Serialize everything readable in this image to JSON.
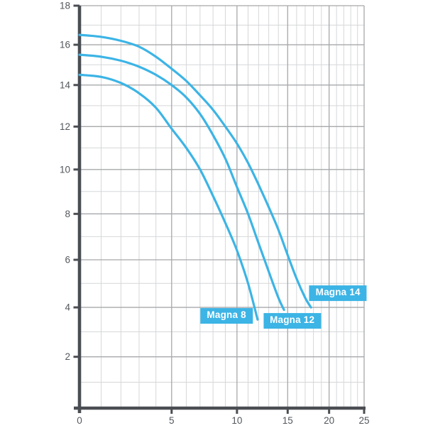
{
  "chart_data": {
    "type": "line",
    "title": "",
    "subtitle": "",
    "legend_position": "inline-labels",
    "grid": "on",
    "x_axis": {
      "label": "",
      "min": 0,
      "max": 25,
      "ticks": [
        0,
        5,
        10,
        15,
        20,
        25
      ],
      "minor_grid_step": 1,
      "scale": "log-offset",
      "scale_offset": 10
    },
    "y_axis": {
      "label": "",
      "min": 0,
      "max": 18,
      "ticks": [
        2,
        4,
        6,
        8,
        10,
        12,
        14,
        16,
        18
      ],
      "minor_grid_step": 1,
      "scale": "log-offset",
      "scale_offset": 50
    },
    "series": [
      {
        "name": "Magna 8",
        "color": "#3cb4e5",
        "points": [
          [
            0,
            14.5
          ],
          [
            1,
            14.4
          ],
          [
            2,
            14.1
          ],
          [
            3,
            13.6
          ],
          [
            4,
            12.9
          ],
          [
            5,
            11.9
          ],
          [
            6,
            11.0
          ],
          [
            7,
            10.0
          ],
          [
            8,
            8.8
          ],
          [
            9,
            7.6
          ],
          [
            10,
            6.4
          ],
          [
            11,
            5.0
          ],
          [
            11.9,
            3.5
          ]
        ],
        "label_anchor": [
          9.1,
          3.65
        ]
      },
      {
        "name": "Magna 12",
        "color": "#3cb4e5",
        "points": [
          [
            0,
            15.5
          ],
          [
            1,
            15.4
          ],
          [
            2,
            15.2
          ],
          [
            3,
            14.9
          ],
          [
            4,
            14.5
          ],
          [
            5,
            14.0
          ],
          [
            6,
            13.4
          ],
          [
            7,
            12.6
          ],
          [
            8,
            11.6
          ],
          [
            9,
            10.5
          ],
          [
            10,
            9.2
          ],
          [
            11,
            8.0
          ],
          [
            12,
            6.7
          ],
          [
            13,
            5.5
          ],
          [
            14,
            4.4
          ],
          [
            14.6,
            3.9
          ]
        ],
        "label_anchor": [
          15.5,
          3.45
        ]
      },
      {
        "name": "Magna 14",
        "color": "#3cb4e5",
        "points": [
          [
            0,
            16.5
          ],
          [
            1,
            16.4
          ],
          [
            2,
            16.2
          ],
          [
            3,
            15.9
          ],
          [
            4,
            15.4
          ],
          [
            5,
            14.8
          ],
          [
            6,
            14.2
          ],
          [
            7,
            13.5
          ],
          [
            8,
            12.8
          ],
          [
            9,
            12.0
          ],
          [
            10,
            11.2
          ],
          [
            11,
            10.3
          ],
          [
            12,
            9.3
          ],
          [
            13,
            8.3
          ],
          [
            14,
            7.3
          ],
          [
            15,
            6.2
          ],
          [
            16,
            5.2
          ],
          [
            17,
            4.4
          ],
          [
            17.7,
            4.0
          ]
        ],
        "label_anchor": [
          21.2,
          4.6
        ]
      }
    ],
    "colors": {
      "curve": "#3cb4e5",
      "axis": "#4a4e53",
      "grid_major": "#a6a8ab",
      "grid_minor": "#d6d7d9",
      "tick_text": "#53575c",
      "label_text": "#ffffff",
      "background": "#ffffff"
    }
  }
}
